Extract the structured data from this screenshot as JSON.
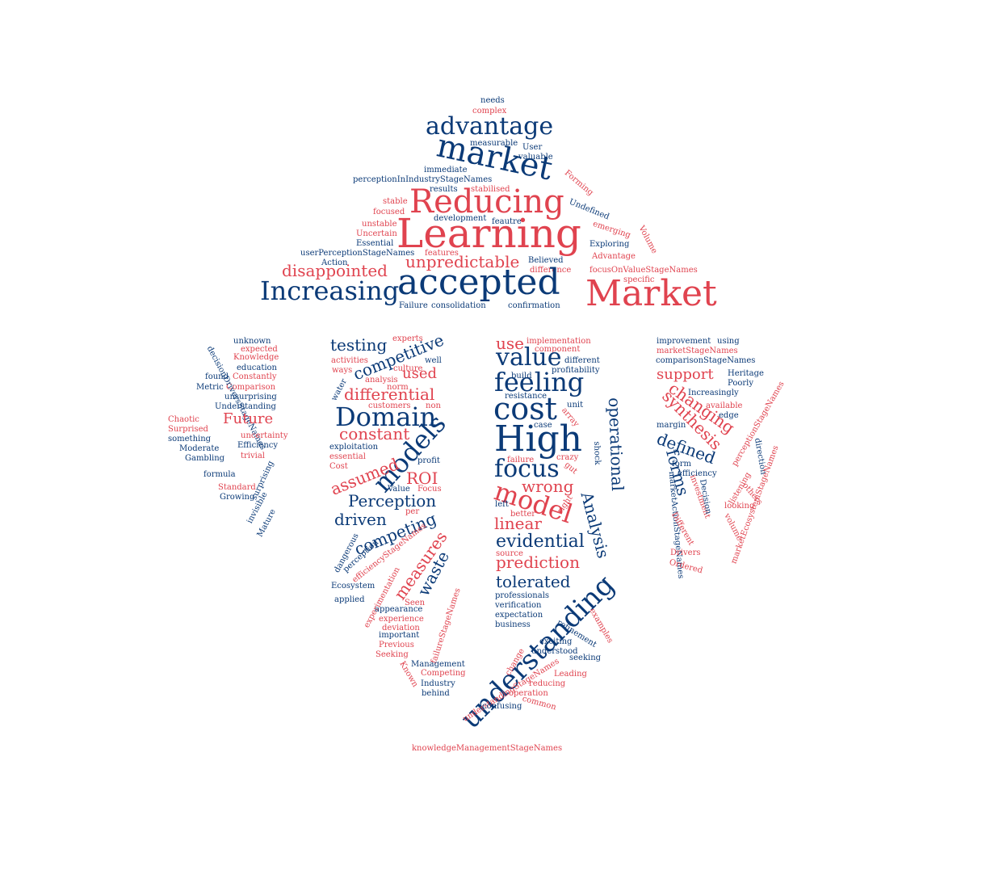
{
  "palette": {
    "navy": "#0b3a77",
    "red": "#e0434f"
  },
  "words": [
    {
      "text": "needs",
      "c": "navy"
    },
    {
      "text": "complex",
      "c": "red"
    },
    {
      "text": "advantage",
      "c": "navy"
    },
    {
      "text": "measurable",
      "c": "navy"
    },
    {
      "text": "User",
      "c": "navy"
    },
    {
      "text": "market",
      "c": "navy"
    },
    {
      "text": "valuable",
      "c": "navy"
    },
    {
      "text": "immediate",
      "c": "navy"
    },
    {
      "text": "perceptionInIndustryStageNames",
      "c": "navy"
    },
    {
      "text": "results",
      "c": "navy"
    },
    {
      "text": "stabilised",
      "c": "red"
    },
    {
      "text": "Forming",
      "c": "red"
    },
    {
      "text": "Reducing",
      "c": "red"
    },
    {
      "text": "stable",
      "c": "red"
    },
    {
      "text": "focused",
      "c": "red"
    },
    {
      "text": "Undefined",
      "c": "navy"
    },
    {
      "text": "unstable",
      "c": "red"
    },
    {
      "text": "development",
      "c": "navy"
    },
    {
      "text": "feautre",
      "c": "navy"
    },
    {
      "text": "Uncertain",
      "c": "red"
    },
    {
      "text": "Learning",
      "c": "red"
    },
    {
      "text": "emerging",
      "c": "red"
    },
    {
      "text": "Essential",
      "c": "navy"
    },
    {
      "text": "Exploring",
      "c": "navy"
    },
    {
      "text": "Volume",
      "c": "red"
    },
    {
      "text": "userPerceptionStageNames",
      "c": "navy"
    },
    {
      "text": "features",
      "c": "red"
    },
    {
      "text": "Advantage",
      "c": "red"
    },
    {
      "text": "Action",
      "c": "navy"
    },
    {
      "text": "unpredictable",
      "c": "red"
    },
    {
      "text": "Believed",
      "c": "navy"
    },
    {
      "text": "disappointed",
      "c": "red"
    },
    {
      "text": "difference",
      "c": "red"
    },
    {
      "text": "focusOnValueStageNames",
      "c": "red"
    },
    {
      "text": "accepted",
      "c": "navy"
    },
    {
      "text": "specific",
      "c": "red"
    },
    {
      "text": "Increasing",
      "c": "navy"
    },
    {
      "text": "Market",
      "c": "red"
    },
    {
      "text": "Failure",
      "c": "navy"
    },
    {
      "text": "consolidation",
      "c": "navy"
    },
    {
      "text": "confirmation",
      "c": "navy"
    },
    {
      "text": "unknown",
      "c": "navy"
    },
    {
      "text": "expected",
      "c": "red"
    },
    {
      "text": "Knowledge",
      "c": "red"
    },
    {
      "text": "education",
      "c": "navy"
    },
    {
      "text": "found",
      "c": "navy"
    },
    {
      "text": "Constantly",
      "c": "red"
    },
    {
      "text": "Metric",
      "c": "navy"
    },
    {
      "text": "Comparison",
      "c": "red"
    },
    {
      "text": "unsurprising",
      "c": "navy"
    },
    {
      "text": "decisionDriversStageNames",
      "c": "navy"
    },
    {
      "text": "Understanding",
      "c": "navy"
    },
    {
      "text": "Chaotic",
      "c": "red"
    },
    {
      "text": "Future",
      "c": "red"
    },
    {
      "text": "Surprised",
      "c": "red"
    },
    {
      "text": "uncertainty",
      "c": "red"
    },
    {
      "text": "something",
      "c": "navy"
    },
    {
      "text": "Efficiency",
      "c": "navy"
    },
    {
      "text": "Moderate",
      "c": "navy"
    },
    {
      "text": "trivial",
      "c": "red"
    },
    {
      "text": "Gambling",
      "c": "navy"
    },
    {
      "text": "surprising",
      "c": "navy"
    },
    {
      "text": "formula",
      "c": "navy"
    },
    {
      "text": "Standard",
      "c": "red"
    },
    {
      "text": "Growing",
      "c": "navy"
    },
    {
      "text": "invisible",
      "c": "navy"
    },
    {
      "text": "Mature",
      "c": "navy"
    },
    {
      "text": "experts",
      "c": "red"
    },
    {
      "text": "testing",
      "c": "navy"
    },
    {
      "text": "competitive",
      "c": "navy"
    },
    {
      "text": "activities",
      "c": "red"
    },
    {
      "text": "well",
      "c": "navy"
    },
    {
      "text": "ways",
      "c": "red"
    },
    {
      "text": "culture",
      "c": "red"
    },
    {
      "text": "used",
      "c": "red"
    },
    {
      "text": "water",
      "c": "navy"
    },
    {
      "text": "norm",
      "c": "red"
    },
    {
      "text": "analysis",
      "c": "red"
    },
    {
      "text": "differential",
      "c": "red"
    },
    {
      "text": "customers",
      "c": "red"
    },
    {
      "text": "non",
      "c": "red"
    },
    {
      "text": "Domain",
      "c": "navy"
    },
    {
      "text": "constant",
      "c": "red"
    },
    {
      "text": "models",
      "c": "navy"
    },
    {
      "text": "exploitation",
      "c": "navy"
    },
    {
      "text": "essential",
      "c": "red"
    },
    {
      "text": "profit",
      "c": "navy"
    },
    {
      "text": "Cost",
      "c": "red"
    },
    {
      "text": "assumed",
      "c": "red"
    },
    {
      "text": "ROI",
      "c": "red"
    },
    {
      "text": "Value",
      "c": "navy"
    },
    {
      "text": "Focus",
      "c": "red"
    },
    {
      "text": "Perception",
      "c": "navy"
    },
    {
      "text": "per",
      "c": "red"
    },
    {
      "text": "driven",
      "c": "navy"
    },
    {
      "text": "competing",
      "c": "navy"
    },
    {
      "text": "dangerous",
      "c": "navy"
    },
    {
      "text": "efficiencyStageNames",
      "c": "red"
    },
    {
      "text": "perception",
      "c": "navy"
    },
    {
      "text": "measures",
      "c": "red"
    },
    {
      "text": "experimentation",
      "c": "red"
    },
    {
      "text": "waste",
      "c": "navy"
    },
    {
      "text": "Ecosystem",
      "c": "navy"
    },
    {
      "text": "applied",
      "c": "navy"
    },
    {
      "text": "Seen",
      "c": "red"
    },
    {
      "text": "appearance",
      "c": "navy"
    },
    {
      "text": "experience",
      "c": "red"
    },
    {
      "text": "failureStageNames",
      "c": "red"
    },
    {
      "text": "deviation",
      "c": "red"
    },
    {
      "text": "important",
      "c": "navy"
    },
    {
      "text": "Previous",
      "c": "red"
    },
    {
      "text": "Seeking",
      "c": "red"
    },
    {
      "text": "Management",
      "c": "navy"
    },
    {
      "text": "Known",
      "c": "red"
    },
    {
      "text": "Competing",
      "c": "red"
    },
    {
      "text": "Industry",
      "c": "navy"
    },
    {
      "text": "behind",
      "c": "navy"
    },
    {
      "text": "use",
      "c": "red"
    },
    {
      "text": "implementation",
      "c": "red"
    },
    {
      "text": "component",
      "c": "red"
    },
    {
      "text": "value",
      "c": "navy"
    },
    {
      "text": "different",
      "c": "navy"
    },
    {
      "text": "feeling",
      "c": "navy"
    },
    {
      "text": "profitability",
      "c": "navy"
    },
    {
      "text": "build",
      "c": "navy"
    },
    {
      "text": "cost",
      "c": "navy"
    },
    {
      "text": "resistance",
      "c": "navy"
    },
    {
      "text": "unit",
      "c": "navy"
    },
    {
      "text": "array",
      "c": "red"
    },
    {
      "text": "operational",
      "c": "navy"
    },
    {
      "text": "High",
      "c": "navy"
    },
    {
      "text": "case",
      "c": "navy"
    },
    {
      "text": "shock",
      "c": "navy"
    },
    {
      "text": "focus",
      "c": "navy"
    },
    {
      "text": "failure",
      "c": "red"
    },
    {
      "text": "crazy",
      "c": "red"
    },
    {
      "text": "gut",
      "c": "red"
    },
    {
      "text": "model",
      "c": "red"
    },
    {
      "text": "wrong",
      "c": "red"
    },
    {
      "text": "right",
      "c": "red"
    },
    {
      "text": "Analysis",
      "c": "navy"
    },
    {
      "text": "left",
      "c": "navy"
    },
    {
      "text": "better",
      "c": "red"
    },
    {
      "text": "linear",
      "c": "red"
    },
    {
      "text": "evidential",
      "c": "navy"
    },
    {
      "text": "source",
      "c": "red"
    },
    {
      "text": "prediction",
      "c": "red"
    },
    {
      "text": "tolerated",
      "c": "navy"
    },
    {
      "text": "professionals",
      "c": "navy"
    },
    {
      "text": "understanding",
      "c": "navy"
    },
    {
      "text": "verification",
      "c": "navy"
    },
    {
      "text": "expectation",
      "c": "navy"
    },
    {
      "text": "examples",
      "c": "red"
    },
    {
      "text": "business",
      "c": "navy"
    },
    {
      "text": "refinement",
      "c": "navy"
    },
    {
      "text": "exciting",
      "c": "navy"
    },
    {
      "text": "understood",
      "c": "navy"
    },
    {
      "text": "seeking",
      "c": "navy"
    },
    {
      "text": "change",
      "c": "red"
    },
    {
      "text": "understandingStageNames",
      "c": "red"
    },
    {
      "text": "Leading",
      "c": "red"
    },
    {
      "text": "reducing",
      "c": "red"
    },
    {
      "text": "operation",
      "c": "red"
    },
    {
      "text": "common",
      "c": "red"
    },
    {
      "text": "confusing",
      "c": "navy"
    },
    {
      "text": "improvement",
      "c": "navy"
    },
    {
      "text": "using",
      "c": "navy"
    },
    {
      "text": "marketStageNames",
      "c": "red"
    },
    {
      "text": "comparisonStageNames",
      "c": "navy"
    },
    {
      "text": "support",
      "c": "red"
    },
    {
      "text": "Heritage",
      "c": "navy"
    },
    {
      "text": "Poorly",
      "c": "navy"
    },
    {
      "text": "Increasingly",
      "c": "navy"
    },
    {
      "text": "changing",
      "c": "red"
    },
    {
      "text": "perceptionStageNames",
      "c": "red"
    },
    {
      "text": "available",
      "c": "red"
    },
    {
      "text": "synthesis",
      "c": "red"
    },
    {
      "text": "edge",
      "c": "navy"
    },
    {
      "text": "margin",
      "c": "navy"
    },
    {
      "text": "defined",
      "c": "navy"
    },
    {
      "text": "direction",
      "c": "navy"
    },
    {
      "text": "forms",
      "c": "navy"
    },
    {
      "text": "form",
      "c": "navy"
    },
    {
      "text": "efficiency",
      "c": "navy"
    },
    {
      "text": "investment",
      "c": "red"
    },
    {
      "text": "Decision",
      "c": "navy"
    },
    {
      "text": "marketActionStageNames",
      "c": "navy"
    },
    {
      "text": "marketEcosystemStageNames",
      "c": "red"
    },
    {
      "text": "listening",
      "c": "red"
    },
    {
      "text": "others",
      "c": "red"
    },
    {
      "text": "looking",
      "c": "red"
    },
    {
      "text": "Different",
      "c": "red"
    },
    {
      "text": "volume",
      "c": "red"
    },
    {
      "text": "Drivers",
      "c": "red"
    },
    {
      "text": "Ordered",
      "c": "red"
    },
    {
      "text": "knowledgeManagementStageNames",
      "c": "red"
    }
  ]
}
